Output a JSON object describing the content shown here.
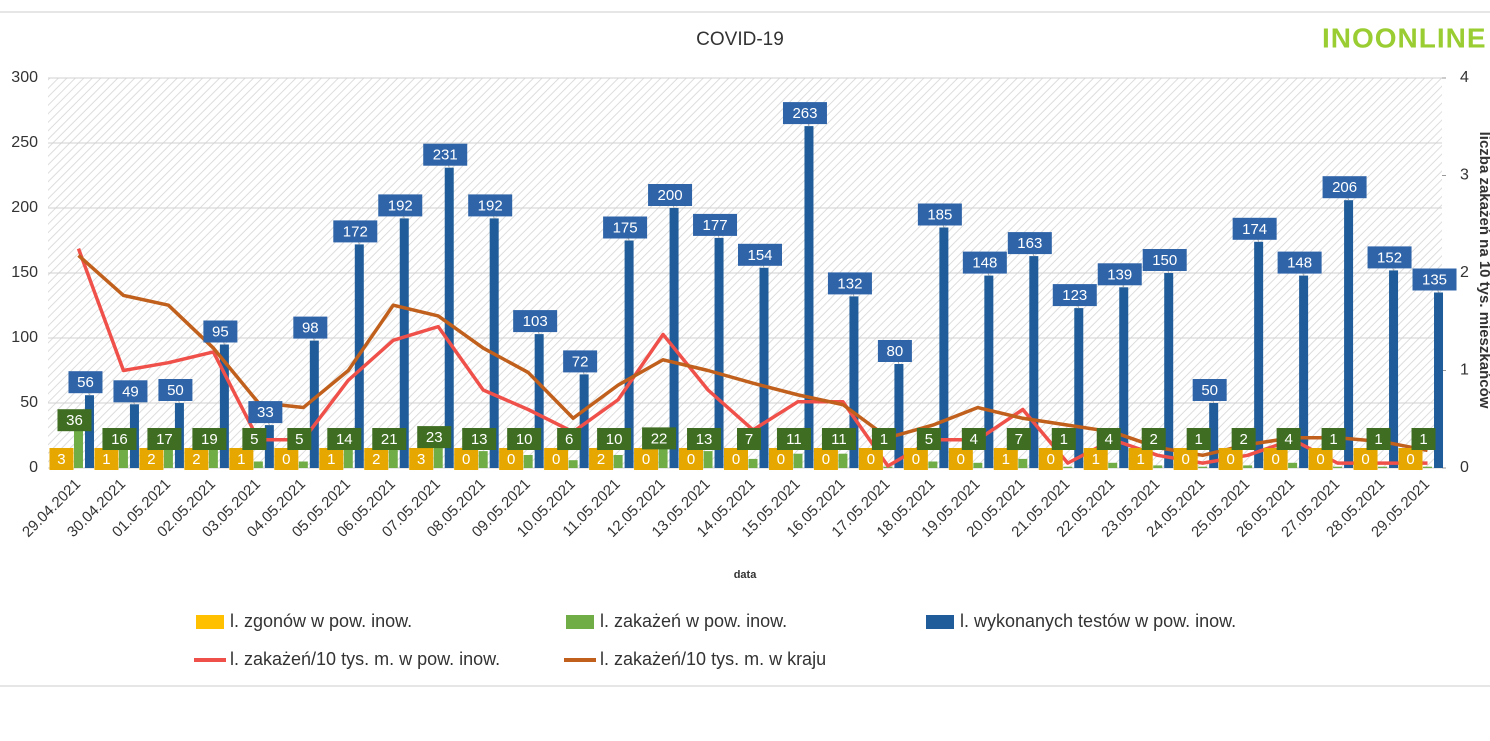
{
  "chart_data": {
    "type": "bar",
    "title": "COVID-19",
    "logo": "INOONLINE",
    "x_label": "data",
    "y2_label": "liczba zakażeń na 10 tys. mieszkańców",
    "categories": [
      "29.04.2021",
      "30.04.2021",
      "01.05.2021",
      "02.05.2021",
      "03.05.2021",
      "04.05.2021",
      "05.05.2021",
      "06.05.2021",
      "07.05.2021",
      "08.05.2021",
      "09.05.2021",
      "10.05.2021",
      "11.05.2021",
      "12.05.2021",
      "13.05.2021",
      "14.05.2021",
      "15.05.2021",
      "16.05.2021",
      "17.05.2021",
      "18.05.2021",
      "19.05.2021",
      "20.05.2021",
      "21.05.2021",
      "22.05.2021",
      "23.05.2021",
      "24.05.2021",
      "25.05.2021",
      "26.05.2021",
      "27.05.2021",
      "28.05.2021",
      "29.05.2021"
    ],
    "ylim": [
      0,
      300
    ],
    "yticks": [
      0,
      50,
      100,
      150,
      200,
      250,
      300
    ],
    "y2lim": [
      0,
      4
    ],
    "y2ticks": [
      0,
      1,
      2,
      3,
      4
    ],
    "grid": true,
    "series": [
      {
        "name": "l. zgonów w pow. inow.",
        "type": "bar",
        "color": "#ffc000",
        "label_color": "#e6a800",
        "values": [
          3,
          1,
          2,
          2,
          1,
          0,
          1,
          2,
          3,
          0,
          0,
          0,
          2,
          0,
          0,
          0,
          0,
          0,
          0,
          0,
          0,
          1,
          0,
          1,
          1,
          0,
          0,
          0,
          0,
          0,
          0
        ]
      },
      {
        "name": "l. zakażeń w pow. inow.",
        "type": "bar",
        "color": "#70ad47",
        "label_color": "#3f6e22",
        "values": [
          36,
          16,
          17,
          19,
          5,
          5,
          14,
          21,
          23,
          13,
          10,
          6,
          10,
          22,
          13,
          7,
          11,
          11,
          1,
          5,
          4,
          7,
          1,
          4,
          2,
          1,
          2,
          4,
          1,
          1,
          1
        ]
      },
      {
        "name": "l. wykonanych testów w pow. inow.",
        "type": "bar",
        "color": "#1f5c99",
        "label_color": "#2f64a8",
        "values": [
          56,
          49,
          50,
          95,
          33,
          98,
          172,
          192,
          231,
          192,
          103,
          72,
          175,
          200,
          177,
          154,
          263,
          132,
          80,
          185,
          148,
          163,
          123,
          139,
          150,
          50,
          174,
          148,
          206,
          152,
          135
        ]
      },
      {
        "name": "l. zakażeń/10 tys. m. w pow. inow.",
        "type": "line",
        "axis": "y2",
        "color": "#f0504a",
        "values": [
          2.25,
          1.0,
          1.08,
          1.19,
          0.29,
          0.29,
          0.9,
          1.31,
          1.45,
          0.8,
          0.6,
          0.37,
          0.7,
          1.37,
          0.8,
          0.39,
          0.68,
          0.68,
          0.02,
          0.29,
          0.29,
          0.6,
          0.05,
          0.29,
          0.13,
          0.05,
          0.13,
          0.29,
          0.05,
          0.05,
          0.05
        ]
      },
      {
        "name": "l. zakażeń/10 tys. m. w kraju",
        "type": "line",
        "axis": "y2",
        "color": "#c0601c",
        "values": [
          2.18,
          1.77,
          1.67,
          1.23,
          0.67,
          0.62,
          1.0,
          1.67,
          1.56,
          1.23,
          0.98,
          0.51,
          0.85,
          1.11,
          1.0,
          0.87,
          0.75,
          0.65,
          0.31,
          0.44,
          0.62,
          0.51,
          0.44,
          0.37,
          0.21,
          0.13,
          0.24,
          0.31,
          0.31,
          0.27,
          0.18
        ]
      }
    ]
  }
}
